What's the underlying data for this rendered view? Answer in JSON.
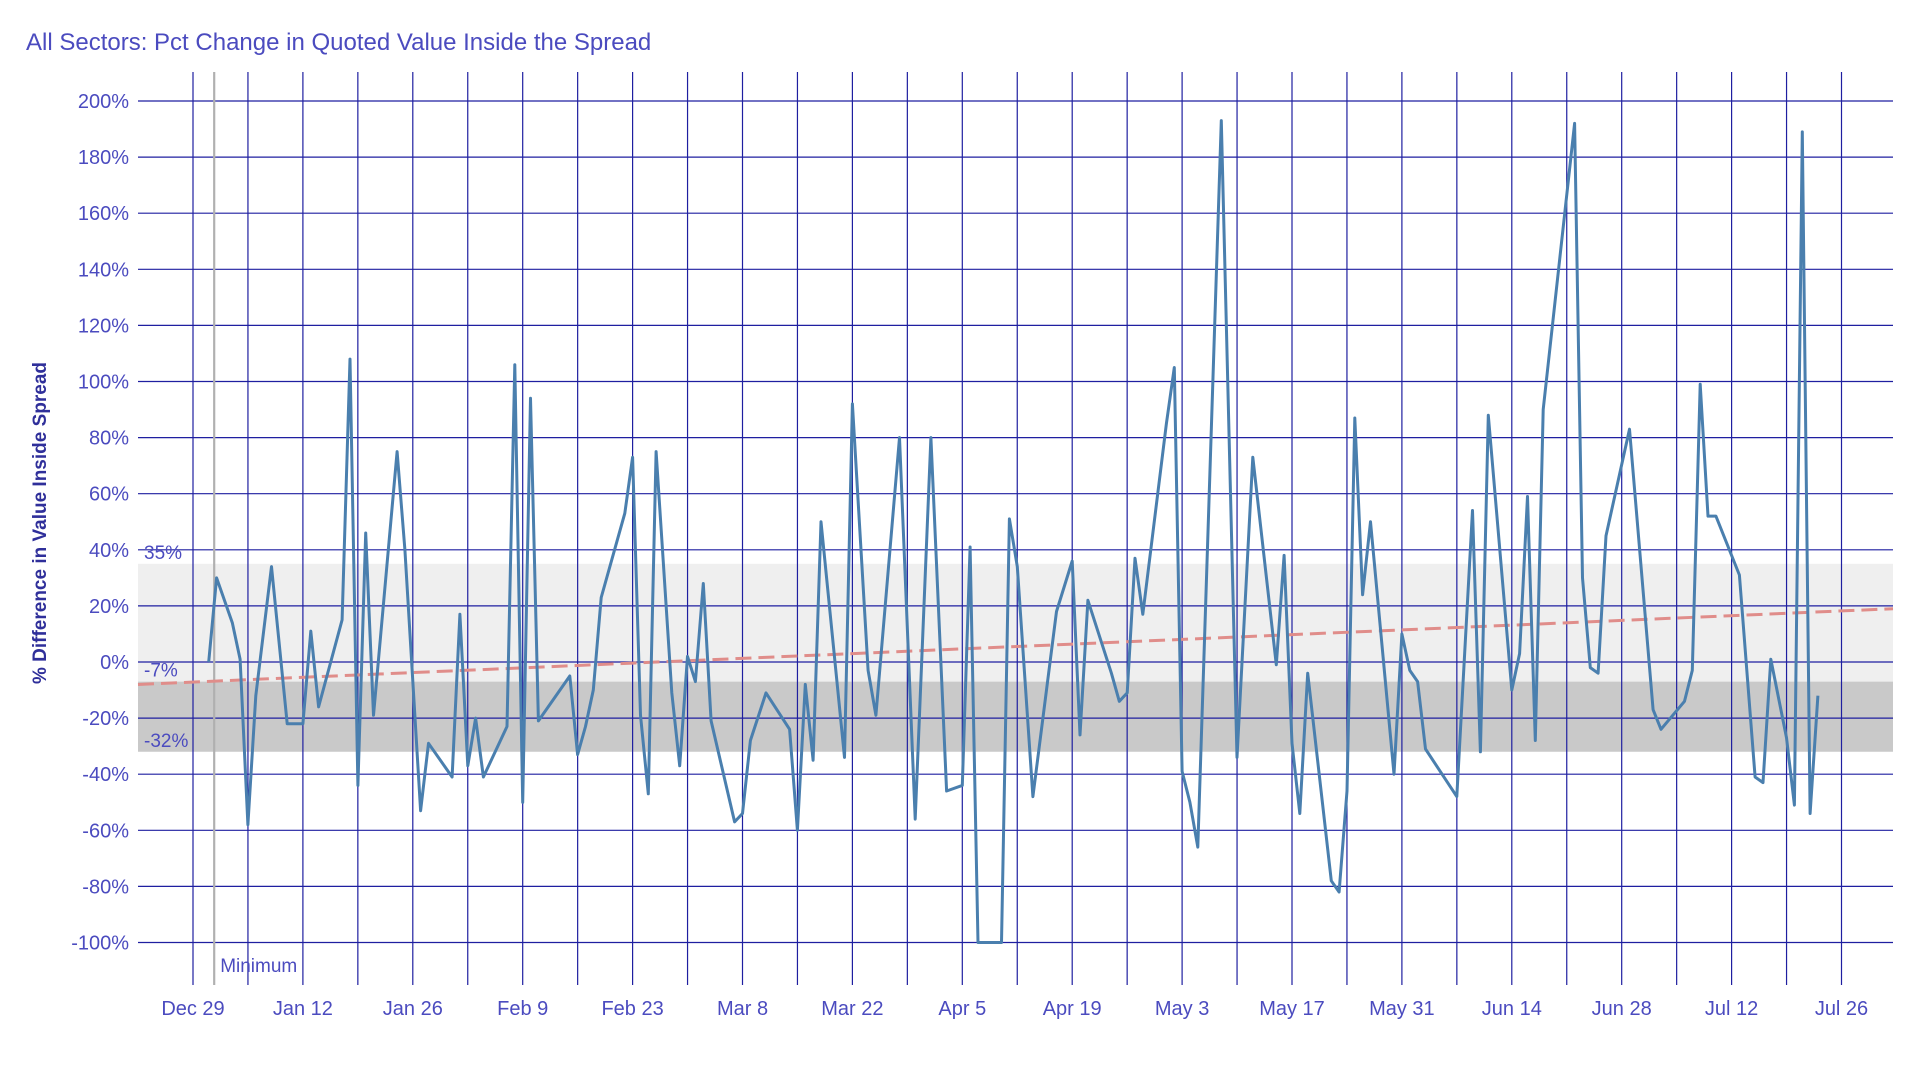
{
  "chart_data": {
    "type": "line",
    "title": "All Sectors: Pct Change in Quoted Value Inside the Spread",
    "xlabel": "",
    "ylabel": "% Difference in Value Inside Spread",
    "x_tick_labels": [
      "Dec 29",
      "Jan 12",
      "Jan 26",
      "Feb 9",
      "Feb 23",
      "Mar 8",
      "Mar 22",
      "Apr 5",
      "Apr 19",
      "May 3",
      "May 17",
      "May 31",
      "Jun 14",
      "Jun 28",
      "Jul 12",
      "Jul 26"
    ],
    "y_tick_labels": [
      "200%",
      "180%",
      "160%",
      "140%",
      "120%",
      "100%",
      "80%",
      "60%",
      "40%",
      "20%",
      "0%",
      "-20%",
      "-40%",
      "-60%",
      "-80%",
      "-100%"
    ],
    "ylim": [
      -115,
      205
    ],
    "xlim_days": [
      -7,
      217
    ],
    "grid": true,
    "bands": [
      {
        "label": "35%",
        "from": -7,
        "to": 35,
        "color": "#efefef"
      },
      {
        "label": "-32%",
        "from": -32,
        "to": -7,
        "color": "#c9c9c9"
      }
    ],
    "band_labels": [
      "35%",
      "-7%",
      "-32%"
    ],
    "reference_line": {
      "label": "Minimum",
      "color": "#b0b0b0"
    },
    "trend_line": {
      "y_start": -8,
      "y_end": 19,
      "color": "#e08d8a"
    },
    "series": [
      {
        "color": "#4a7fae",
        "points": [
          [
            2,
            0
          ],
          [
            3,
            30
          ],
          [
            5,
            14
          ],
          [
            6,
            1
          ],
          [
            7,
            -58
          ],
          [
            8,
            -12
          ],
          [
            10,
            34
          ],
          [
            12,
            -22
          ],
          [
            14,
            -22
          ],
          [
            15,
            11
          ],
          [
            16,
            -16
          ],
          [
            19,
            15
          ],
          [
            20,
            108
          ],
          [
            21,
            -44
          ],
          [
            22,
            46
          ],
          [
            23,
            -19
          ],
          [
            26,
            75
          ],
          [
            27,
            40
          ],
          [
            29,
            -53
          ],
          [
            30,
            -29
          ],
          [
            33,
            -41
          ],
          [
            34,
            17
          ],
          [
            35,
            -37
          ],
          [
            36,
            -20
          ],
          [
            37,
            -41
          ],
          [
            40,
            -23
          ],
          [
            41,
            106
          ],
          [
            42,
            -50
          ],
          [
            43,
            94
          ],
          [
            44,
            -21
          ],
          [
            48,
            -5
          ],
          [
            49,
            -33
          ],
          [
            50,
            -23
          ],
          [
            51,
            -10
          ],
          [
            52,
            23
          ],
          [
            55,
            53
          ],
          [
            56,
            73
          ],
          [
            57,
            -19
          ],
          [
            58,
            -47
          ],
          [
            59,
            75
          ],
          [
            61,
            -11
          ],
          [
            62,
            -37
          ],
          [
            63,
            2
          ],
          [
            64,
            -7
          ],
          [
            65,
            28
          ],
          [
            66,
            -21
          ],
          [
            69,
            -57
          ],
          [
            70,
            -54
          ],
          [
            71,
            -28
          ],
          [
            73,
            -11
          ],
          [
            76,
            -24
          ],
          [
            77,
            -60
          ],
          [
            78,
            -8
          ],
          [
            79,
            -35
          ],
          [
            80,
            50
          ],
          [
            83,
            -34
          ],
          [
            84,
            92
          ],
          [
            86,
            -3
          ],
          [
            87,
            -19
          ],
          [
            90,
            80
          ],
          [
            92,
            -56
          ],
          [
            94,
            80
          ],
          [
            96,
            -46
          ],
          [
            98,
            -44
          ],
          [
            99,
            41
          ],
          [
            100,
            -100
          ],
          [
            103,
            -100
          ],
          [
            104,
            51
          ],
          [
            105,
            34
          ],
          [
            107,
            -48
          ],
          [
            110,
            18
          ],
          [
            112,
            36
          ],
          [
            113,
            -26
          ],
          [
            114,
            22
          ],
          [
            117,
            -4
          ],
          [
            118,
            -14
          ],
          [
            119,
            -11
          ],
          [
            120,
            37
          ],
          [
            121,
            17
          ],
          [
            124,
            85
          ],
          [
            125,
            105
          ],
          [
            126,
            -39
          ],
          [
            127,
            -50
          ],
          [
            128,
            -66
          ],
          [
            131,
            193
          ],
          [
            133,
            -34
          ],
          [
            135,
            73
          ],
          [
            138,
            -1
          ],
          [
            139,
            38
          ],
          [
            140,
            -29
          ],
          [
            141,
            -54
          ],
          [
            142,
            -4
          ],
          [
            145,
            -78
          ],
          [
            146,
            -82
          ],
          [
            147,
            -46
          ],
          [
            148,
            87
          ],
          [
            149,
            24
          ],
          [
            150,
            50
          ],
          [
            153,
            -40
          ],
          [
            154,
            10
          ],
          [
            155,
            -3
          ],
          [
            156,
            -7
          ],
          [
            157,
            -31
          ],
          [
            161,
            -48
          ],
          [
            163,
            54
          ],
          [
            164,
            -32
          ],
          [
            165,
            88
          ],
          [
            168,
            -10
          ],
          [
            169,
            3
          ],
          [
            170,
            59
          ],
          [
            171,
            -28
          ],
          [
            172,
            90
          ],
          [
            176,
            192
          ],
          [
            177,
            30
          ],
          [
            178,
            -2
          ],
          [
            179,
            -4
          ],
          [
            180,
            45
          ],
          [
            183,
            83
          ],
          [
            186,
            -17
          ],
          [
            187,
            -24
          ],
          [
            190,
            -14
          ],
          [
            191,
            -3
          ],
          [
            192,
            99
          ],
          [
            193,
            52
          ],
          [
            194,
            52
          ],
          [
            197,
            31
          ],
          [
            199,
            -41
          ],
          [
            200,
            -43
          ],
          [
            201,
            1
          ],
          [
            203,
            -27
          ],
          [
            204,
            -51
          ],
          [
            205,
            189
          ],
          [
            206,
            -54
          ],
          [
            207,
            -12
          ]
        ]
      }
    ]
  }
}
